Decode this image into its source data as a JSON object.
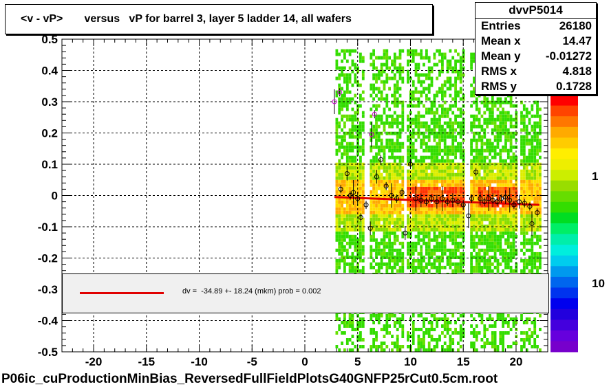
{
  "title": "<v - vP>       versus   vP for barrel 3, layer 5 ladder 14, all wafers",
  "stats": {
    "name": "dvvP5014",
    "rows": [
      {
        "label": "Entries",
        "value": "26180"
      },
      {
        "label": "Mean x",
        "value": "14.47"
      },
      {
        "label": "Mean y",
        "value": "-0.01272"
      },
      {
        "label": "RMS x",
        "value": "4.818"
      },
      {
        "label": "RMS y",
        "value": "0.1728"
      }
    ]
  },
  "fit_legend": "dv =  -34.89 +- 18.24 (mkm) prob = 0.002",
  "footer": "P06ic_cuProductionMinBias_ReversedFullFieldPlotsG40GNFP25rCut0.5cm.root",
  "colors": {
    "fit_line": "#e00000",
    "frame": "#000000",
    "grid": "#000000",
    "legend_bg": "#f0f0f0"
  },
  "chart_data": {
    "type": "heatmap",
    "title": "<v - vP>       versus   vP for barrel 3, layer 5 ladder 14, all wafers",
    "xlabel": "",
    "ylabel": "",
    "xlim": [
      -23,
      23
    ],
    "ylim": [
      -0.5,
      0.5
    ],
    "x_ticks": [
      "-20",
      "-15",
      "-10",
      "-5",
      "0",
      "5",
      "10",
      "15",
      "20"
    ],
    "y_ticks": [
      "-0.5",
      "-0.4",
      "-0.3",
      "-0.2",
      "-0.1",
      "0",
      "0.1",
      "0.2",
      "0.3",
      "0.4",
      "0.5"
    ],
    "grid": true,
    "z_scale": "log",
    "z_labels": [
      "1",
      "10"
    ],
    "occupied_x_range": [
      2.9,
      22.2
    ],
    "dense_core_y_range": [
      -0.12,
      0.1
    ],
    "profile_points": [
      {
        "x": 2.8,
        "y": 0.3
      },
      {
        "x": 3.3,
        "y": 0.33
      },
      {
        "x": 3.4,
        "y": 0.02
      },
      {
        "x": 4.0,
        "y": 0.07
      },
      {
        "x": 4.3,
        "y": 0.0
      },
      {
        "x": 4.6,
        "y": 0.01
      },
      {
        "x": 5.0,
        "y": -0.01
      },
      {
        "x": 5.3,
        "y": -0.07
      },
      {
        "x": 5.8,
        "y": -0.03
      },
      {
        "x": 6.2,
        "y": -0.105
      },
      {
        "x": 6.3,
        "y": 0.195
      },
      {
        "x": 6.6,
        "y": 0.26
      },
      {
        "x": 6.8,
        "y": 0.06
      },
      {
        "x": 7.2,
        "y": 0.115
      },
      {
        "x": 7.7,
        "y": 0.03
      },
      {
        "x": 8.2,
        "y": 0.0
      },
      {
        "x": 8.7,
        "y": -0.01
      },
      {
        "x": 9.2,
        "y": 0.01
      },
      {
        "x": 9.5,
        "y": -0.12
      },
      {
        "x": 10.0,
        "y": 0.1
      },
      {
        "x": 10.5,
        "y": -0.01
      },
      {
        "x": 11.0,
        "y": -0.015
      },
      {
        "x": 11.5,
        "y": -0.02
      },
      {
        "x": 12.0,
        "y": -0.01
      },
      {
        "x": 12.5,
        "y": -0.02
      },
      {
        "x": 13.0,
        "y": -0.01
      },
      {
        "x": 13.5,
        "y": -0.02
      },
      {
        "x": 14.0,
        "y": -0.015
      },
      {
        "x": 14.5,
        "y": -0.02
      },
      {
        "x": 15.0,
        "y": -0.03
      },
      {
        "x": 15.5,
        "y": -0.065
      },
      {
        "x": 15.8,
        "y": -0.01
      },
      {
        "x": 16.2,
        "y": 0.075
      },
      {
        "x": 16.6,
        "y": -0.01
      },
      {
        "x": 17.0,
        "y": -0.02
      },
      {
        "x": 17.4,
        "y": -0.01
      },
      {
        "x": 17.8,
        "y": -0.015
      },
      {
        "x": 18.2,
        "y": -0.02
      },
      {
        "x": 18.6,
        "y": -0.01
      },
      {
        "x": 19.0,
        "y": -0.005
      },
      {
        "x": 19.4,
        "y": -0.015
      },
      {
        "x": 19.8,
        "y": -0.03
      },
      {
        "x": 20.3,
        "y": -0.02
      },
      {
        "x": 20.8,
        "y": -0.025
      },
      {
        "x": 21.3,
        "y": -0.035
      },
      {
        "x": 21.5,
        "y": -0.09
      },
      {
        "x": 22.0,
        "y": -0.055
      }
    ],
    "fit_line": {
      "x": [
        2.8,
        22.2
      ],
      "y": [
        -0.005,
        -0.03
      ]
    }
  }
}
